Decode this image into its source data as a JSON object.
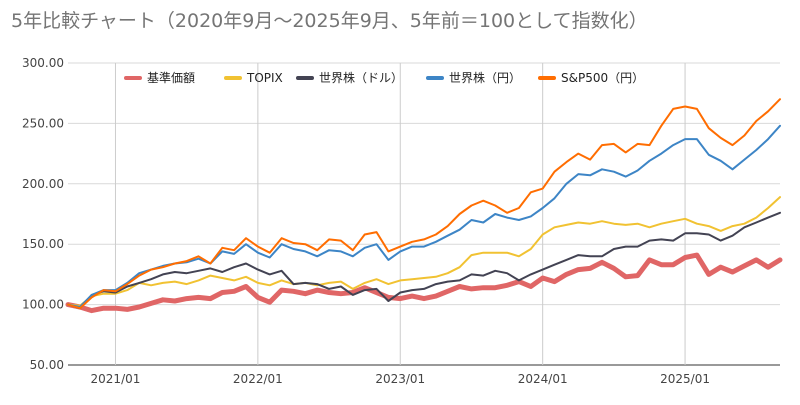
{
  "chart_data": {
    "type": "line",
    "title": "5年比較チャート（2020年9月〜2025年9月、5年前＝100として指数化）",
    "xlabel": "",
    "ylabel": "",
    "ylim": [
      50,
      300
    ],
    "y_ticks": [
      "50.00",
      "100.00",
      "150.00",
      "200.00",
      "250.00",
      "300.00"
    ],
    "x_ticks": [
      "2021/01",
      "2022/01",
      "2023/01",
      "2024/01",
      "2025/01"
    ],
    "grid": true,
    "legend_position": "top",
    "x": [
      "2020/09",
      "2020/10",
      "2020/11",
      "2020/12",
      "2021/01",
      "2021/02",
      "2021/03",
      "2021/04",
      "2021/05",
      "2021/06",
      "2021/07",
      "2021/08",
      "2021/09",
      "2021/10",
      "2021/11",
      "2021/12",
      "2022/01",
      "2022/02",
      "2022/03",
      "2022/04",
      "2022/05",
      "2022/06",
      "2022/07",
      "2022/08",
      "2022/09",
      "2022/10",
      "2022/11",
      "2022/12",
      "2023/01",
      "2023/02",
      "2023/03",
      "2023/04",
      "2023/05",
      "2023/06",
      "2023/07",
      "2023/08",
      "2023/09",
      "2023/10",
      "2023/11",
      "2023/12",
      "2024/01",
      "2024/02",
      "2024/03",
      "2024/04",
      "2024/05",
      "2024/06",
      "2024/07",
      "2024/08",
      "2024/09",
      "2024/10",
      "2024/11",
      "2024/12",
      "2025/01",
      "2025/02",
      "2025/03",
      "2025/04",
      "2025/05",
      "2025/06",
      "2025/07",
      "2025/08",
      "2025/09"
    ],
    "series": [
      {
        "name": "基準価額",
        "color": "#e06666",
        "width": 5,
        "values": [
          100,
          98,
          95,
          97,
          97,
          96,
          98,
          101,
          104,
          103,
          105,
          106,
          105,
          110,
          111,
          115,
          106,
          102,
          112,
          111,
          109,
          112,
          110,
          109,
          110,
          114,
          110,
          106,
          105,
          107,
          105,
          107,
          111,
          115,
          113,
          114,
          114,
          116,
          119,
          115,
          122,
          119,
          125,
          129,
          130,
          135,
          130,
          123,
          124,
          137,
          133,
          133,
          139,
          141,
          125,
          131,
          127,
          132,
          137,
          131,
          137
        ]
      },
      {
        "name": "TOPIX",
        "color": "#f1c232",
        "width": 2,
        "values": [
          100,
          99,
          107,
          109,
          109,
          112,
          118,
          116,
          118,
          119,
          117,
          120,
          124,
          122,
          120,
          123,
          118,
          116,
          120,
          117,
          118,
          116,
          118,
          119,
          113,
          118,
          121,
          117,
          120,
          121,
          122,
          123,
          126,
          131,
          141,
          143,
          143,
          143,
          140,
          146,
          158,
          164,
          166,
          168,
          167,
          169,
          167,
          166,
          167,
          164,
          167,
          169,
          171,
          167,
          165,
          161,
          165,
          167,
          172,
          180,
          189
        ]
      },
      {
        "name": "世界株（ドル）",
        "color": "#434353",
        "width": 2,
        "values": [
          100,
          97,
          108,
          111,
          110,
          115,
          118,
          121,
          125,
          127,
          126,
          128,
          130,
          127,
          131,
          134,
          129,
          125,
          128,
          117,
          118,
          117,
          113,
          115,
          108,
          112,
          113,
          103,
          110,
          112,
          113,
          117,
          119,
          120,
          125,
          124,
          128,
          126,
          120,
          125,
          129,
          133,
          137,
          141,
          140,
          140,
          146,
          148,
          148,
          153,
          154,
          153,
          159,
          159,
          158,
          153,
          157,
          164,
          168,
          172,
          176
        ]
      },
      {
        "name": "世界株（円）",
        "color": "#3d85c6",
        "width": 2,
        "values": [
          100,
          98,
          108,
          112,
          112,
          118,
          126,
          129,
          132,
          134,
          135,
          138,
          134,
          144,
          142,
          150,
          143,
          139,
          150,
          146,
          144,
          140,
          145,
          144,
          140,
          147,
          150,
          137,
          144,
          148,
          148,
          152,
          157,
          162,
          170,
          168,
          175,
          172,
          170,
          173,
          180,
          188,
          200,
          208,
          207,
          212,
          210,
          206,
          211,
          219,
          225,
          232,
          237,
          237,
          224,
          219,
          212,
          220,
          228,
          237,
          248
        ]
      },
      {
        "name": "S&P500（円）",
        "color": "#ff6d01",
        "width": 2,
        "values": [
          100,
          97,
          106,
          112,
          111,
          117,
          124,
          129,
          131,
          134,
          136,
          140,
          134,
          147,
          145,
          155,
          148,
          143,
          155,
          151,
          150,
          145,
          154,
          153,
          145,
          158,
          160,
          144,
          148,
          152,
          154,
          158,
          165,
          175,
          182,
          186,
          182,
          176,
          180,
          193,
          196,
          210,
          218,
          225,
          220,
          232,
          233,
          226,
          233,
          232,
          248,
          262,
          264,
          262,
          246,
          238,
          232,
          240,
          252,
          260,
          270
        ]
      }
    ]
  }
}
